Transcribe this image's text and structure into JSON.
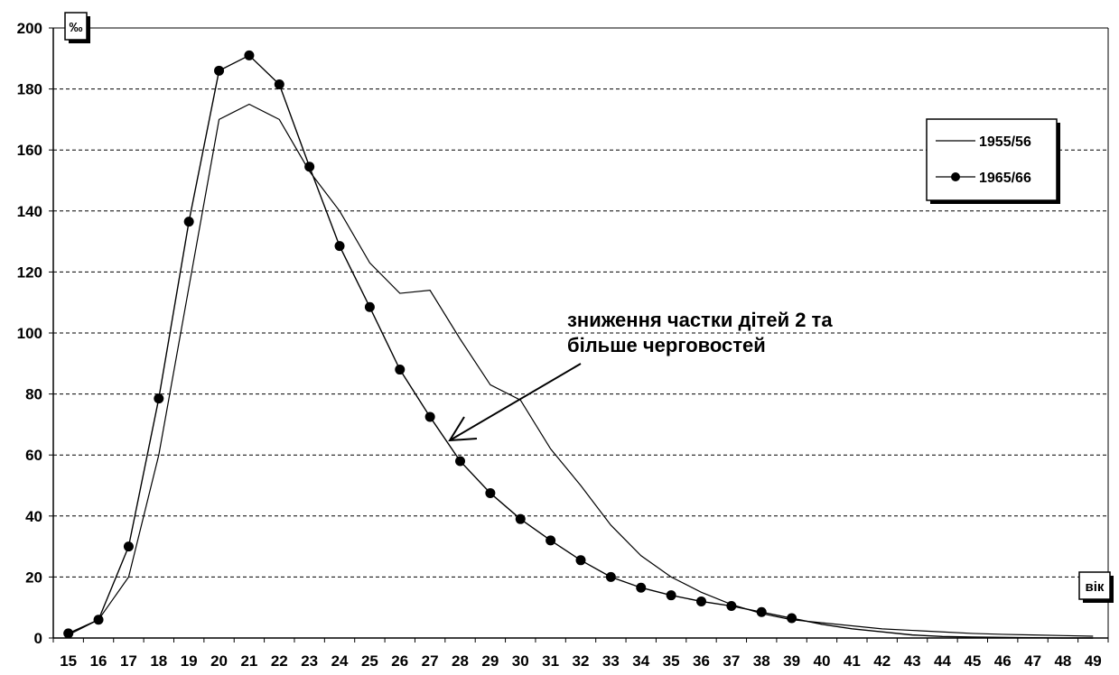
{
  "chart_data": {
    "type": "line",
    "x": [
      15,
      16,
      17,
      18,
      19,
      20,
      21,
      22,
      23,
      24,
      25,
      26,
      27,
      28,
      29,
      30,
      31,
      32,
      33,
      34,
      35,
      36,
      37,
      38,
      39,
      40,
      41,
      42,
      43,
      44,
      45,
      46,
      47,
      48,
      49
    ],
    "series": [
      {
        "name": "1955/56",
        "marker": "none",
        "color": "#000000",
        "values": [
          1,
          6,
          20,
          60,
          115,
          170,
          175,
          170,
          153,
          140,
          123,
          113,
          114,
          98,
          83,
          78,
          62,
          50,
          37,
          27,
          20,
          15,
          11,
          8,
          6,
          5,
          4,
          3,
          2.5,
          2,
          1.5,
          1.2,
          1,
          0.8,
          0.6
        ]
      },
      {
        "name": "1965/66",
        "marker": "circle",
        "color": "#000000",
        "values": [
          1.5,
          6,
          30,
          78.5,
          136.5,
          186,
          191,
          181.5,
          154.5,
          128.5,
          108.5,
          88,
          72.5,
          58,
          47.5,
          39,
          32,
          25.5,
          20,
          16.5,
          14,
          12,
          10.5,
          8.5,
          6.5,
          4.5,
          3,
          2,
          1,
          0.5,
          0.3,
          0.2,
          0.1,
          0,
          0
        ]
      }
    ],
    "ylim": [
      0,
      200
    ],
    "yticks": [
      "0",
      "20",
      "40",
      "60",
      "80",
      "100",
      "120",
      "140",
      "160",
      "180",
      "200"
    ],
    "xticks": [
      "15",
      "16",
      "17",
      "18",
      "19",
      "20",
      "21",
      "22",
      "23",
      "24",
      "25",
      "26",
      "27",
      "28",
      "29",
      "30",
      "31",
      "32",
      "33",
      "34",
      "35",
      "36",
      "37",
      "38",
      "39",
      "40",
      "41",
      "42",
      "43",
      "44",
      "45",
      "46",
      "47",
      "48",
      "49"
    ],
    "ylabel": "‰",
    "xlabel": "вік",
    "grid": "horizontal-dashed",
    "legend_position": "top-right",
    "annotation": {
      "line1": "зниження частки дітей 2 та",
      "line2": "більше черговостей",
      "points_to_x": 28
    }
  }
}
